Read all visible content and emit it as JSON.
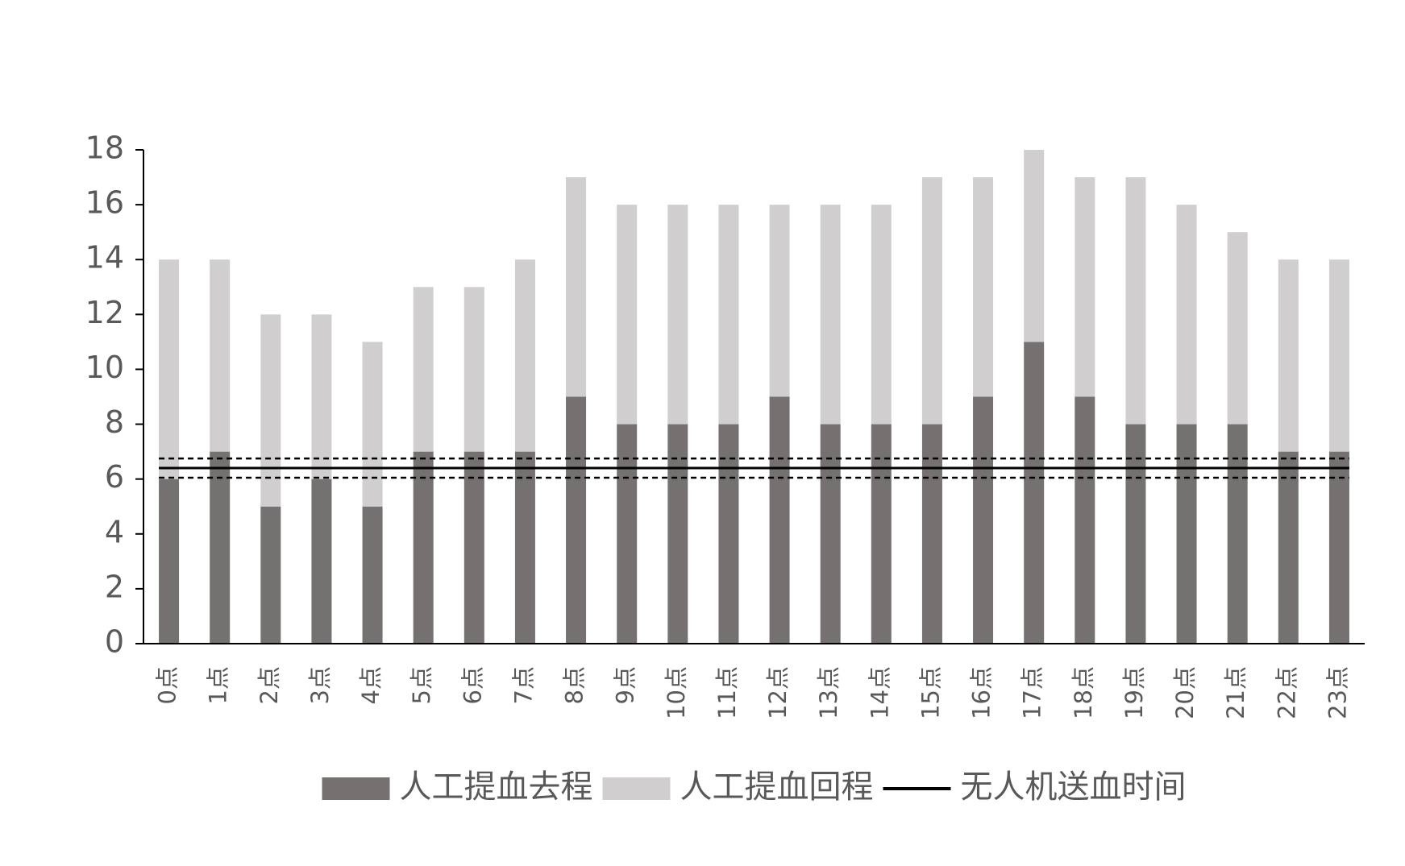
{
  "chart_data": {
    "type": "stacked_bar",
    "categories": [
      "0点",
      "1点",
      "2点",
      "3点",
      "4点",
      "5点",
      "6点",
      "7点",
      "8点",
      "9点",
      "10点",
      "11点",
      "12点",
      "13点",
      "14点",
      "15点",
      "16点",
      "17点",
      "18点",
      "19点",
      "20点",
      "21点",
      "22点",
      "23点"
    ],
    "series": [
      {
        "name": "人工提血去程",
        "color": "#767171",
        "values": [
          6,
          7,
          5,
          6,
          5,
          7,
          7,
          7,
          9,
          8,
          8,
          8,
          9,
          8,
          8,
          8,
          9,
          11,
          9,
          8,
          8,
          8,
          7,
          7
        ]
      },
      {
        "name": "人工提血回程",
        "color": "#d0cece",
        "values": [
          8,
          7,
          7,
          6,
          6,
          6,
          6,
          7,
          8,
          8,
          8,
          8,
          7,
          8,
          8,
          9,
          8,
          7,
          8,
          9,
          8,
          7,
          7,
          7
        ]
      }
    ],
    "reference_line": {
      "name": "无人机送血时间",
      "color": "#000000",
      "value": 6.4,
      "upper": 6.75,
      "lower": 6.05
    },
    "ylim": [
      0,
      18
    ],
    "yticks": [
      0,
      2,
      4,
      6,
      8,
      10,
      12,
      14,
      16,
      18
    ]
  }
}
